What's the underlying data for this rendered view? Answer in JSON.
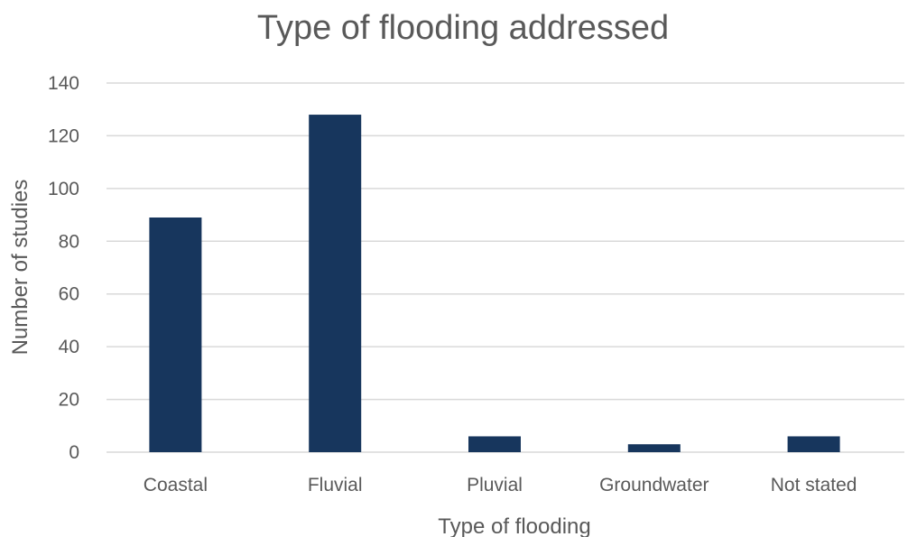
{
  "chart_data": {
    "type": "bar",
    "title": "Type of flooding addressed",
    "xlabel": "Type of flooding",
    "ylabel": "Number of studies",
    "categories": [
      "Coastal",
      "Fluvial",
      "Pluvial",
      "Groundwater",
      "Not stated"
    ],
    "values": [
      89,
      128,
      6,
      3,
      6
    ],
    "ylim": [
      0,
      140
    ],
    "yticks": [
      0,
      20,
      40,
      60,
      80,
      100,
      120,
      140
    ],
    "grid": true,
    "legend": "none",
    "colors": {
      "bar": "#17365d",
      "grid": "#d9d9d9",
      "text": "#595959"
    }
  }
}
